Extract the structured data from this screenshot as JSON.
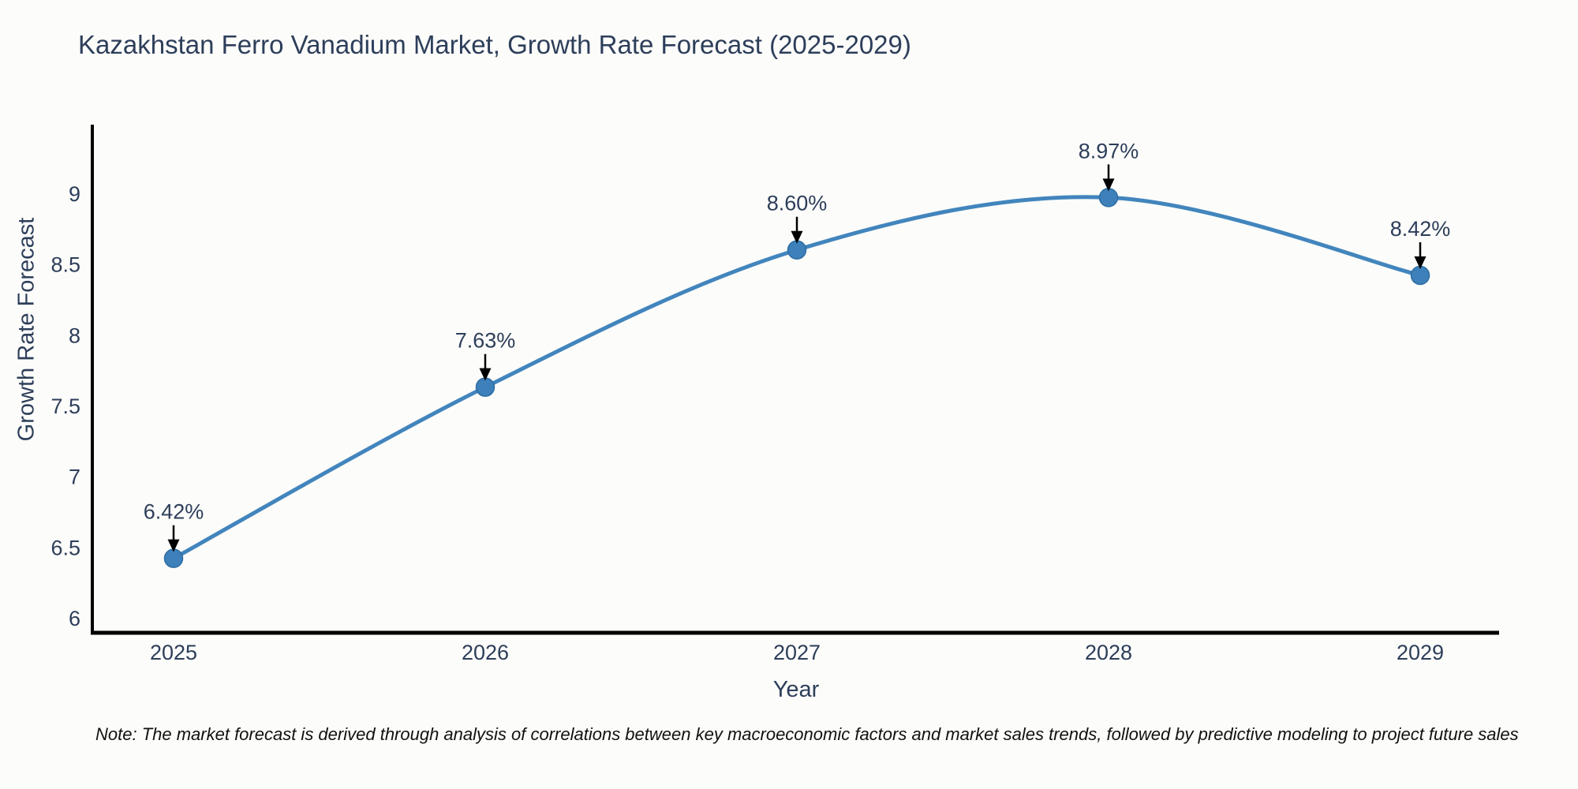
{
  "chart_data": {
    "type": "line",
    "title": "Kazakhstan Ferro Vanadium Market, Growth Rate Forecast (2025-2029)",
    "xlabel": "Year",
    "ylabel": "Growth Rate Forecast",
    "x": [
      "2025",
      "2026",
      "2027",
      "2028",
      "2029"
    ],
    "series": [
      {
        "name": "Growth Rate Forecast",
        "values": [
          6.42,
          7.63,
          8.6,
          8.97,
          8.42
        ]
      }
    ],
    "point_labels": [
      "6.42%",
      "7.63%",
      "8.60%",
      "8.97%",
      "8.42%"
    ],
    "ylim": [
      6,
      9
    ],
    "yticks": [
      6,
      6.5,
      7,
      7.5,
      8,
      8.5,
      9
    ],
    "ytick_labels": [
      "6",
      "6.5",
      "7",
      "7.5",
      "8",
      "8.5",
      "9"
    ],
    "grid": false,
    "legend": "none",
    "line_shape": "spline",
    "colors": {
      "line": "#4285bd",
      "marker_fill": "#3d80ba",
      "marker_edge": "#2d6da3",
      "axis_spine": "#000000",
      "tick_text": "#2d3e5a",
      "title_text": "#2d3e5a",
      "annotation_text": "#2d3e5a",
      "annotation_arrow": "#000000",
      "background": "#fcfcfa"
    }
  },
  "footer": {
    "note": "Note: The market forecast is derived through analysis of correlations between key macroeconomic factors and market sales trends, followed by predictive modeling to project future sales"
  }
}
